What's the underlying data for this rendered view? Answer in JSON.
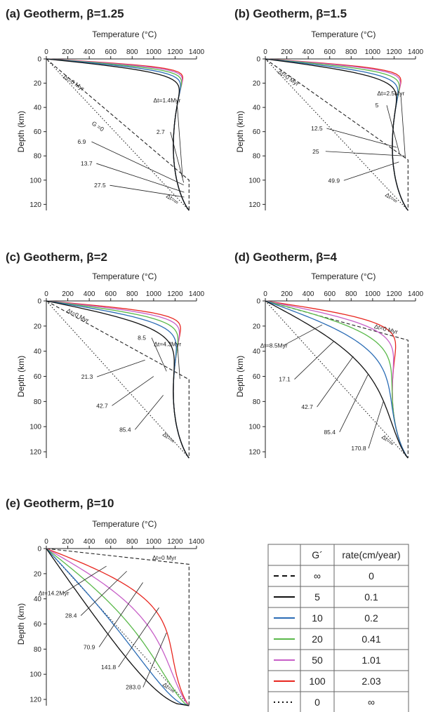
{
  "chart_data": [
    {
      "id": "a",
      "type": "line",
      "title": "(a) Geotherm, β=1.25",
      "xlabel": "Temperature (°C)",
      "ylabel": "Depth (km)",
      "xlim": [
        0,
        1400
      ],
      "ylim": [
        0,
        125
      ],
      "xticks": [
        0,
        200,
        400,
        600,
        800,
        1000,
        1200,
        1400
      ],
      "yticks": [
        0,
        20,
        40,
        60,
        80,
        100,
        120
      ],
      "initial": {
        "T_base": 1330,
        "depth": 100
      },
      "asymptote_depth": 125,
      "curve_scale": 17,
      "series": [
        {
          "G": "100",
          "color": "#e8261f",
          "k": 2.2
        },
        {
          "G": "50",
          "color": "#c75fc7",
          "k": 2.0
        },
        {
          "G": "20",
          "color": "#5ab94a",
          "k": 1.75
        },
        {
          "G": "10",
          "color": "#2b6cb5",
          "k": 1.5
        },
        {
          "G": "5",
          "color": "#111111",
          "k": 1.25
        }
      ],
      "annotations": [
        {
          "text": "Δt=0 Myr",
          "T": 245,
          "z": 21,
          "rot": 34,
          "lx": null,
          "lz": null
        },
        {
          "text": "Δt=1.4Myr",
          "T": 1125,
          "z": 36,
          "lx": 1270,
          "lz": 98
        },
        {
          "text": "2.7",
          "T": 1065,
          "z": 62,
          "lx": 1280,
          "lz": 102
        },
        {
          "text": "G =0",
          "T": 470,
          "z": 57,
          "rot": 34,
          "lx": null,
          "lz": null
        },
        {
          "text": "6.9",
          "T": 330,
          "z": 70,
          "lx": 1280,
          "lz": 104
        },
        {
          "text": "13.7",
          "T": 375,
          "z": 88,
          "lx": 1285,
          "lz": 110
        },
        {
          "text": "27.5",
          "T": 500,
          "z": 106,
          "lx": 1285,
          "lz": 114
        },
        {
          "text": "Δt=∞",
          "T": 1165,
          "z": 117,
          "rot": 34,
          "lx": null,
          "lz": null
        }
      ]
    },
    {
      "id": "b",
      "type": "line",
      "title": "(b) Geotherm, β=1.5",
      "xlabel": "Temperature (°C)",
      "ylabel": "Depth (km)",
      "xlim": [
        0,
        1400
      ],
      "ylim": [
        0,
        125
      ],
      "xticks": [
        0,
        200,
        400,
        600,
        800,
        1000,
        1200,
        1400
      ],
      "yticks": [
        0,
        20,
        40,
        60,
        80,
        100,
        120
      ],
      "initial": {
        "T_base": 1330,
        "depth": 83.3
      },
      "asymptote_depth": 125,
      "curve_scale": 20,
      "series": [
        {
          "G": "100",
          "color": "#e8261f",
          "k": 2.2
        },
        {
          "G": "50",
          "color": "#c75fc7",
          "k": 2.0
        },
        {
          "G": "20",
          "color": "#5ab94a",
          "k": 1.7
        },
        {
          "G": "10",
          "color": "#2b6cb5",
          "k": 1.4
        },
        {
          "G": "5",
          "color": "#111111",
          "k": 1.15
        }
      ],
      "annotations": [
        {
          "text": "Δt=0 Myr",
          "T": 205,
          "z": 17,
          "rot": 34,
          "lx": null,
          "lz": null
        },
        {
          "text": "Δt=2.5Myr",
          "T": 1170,
          "z": 30,
          "lx": 1305,
          "lz": 82
        },
        {
          "text": "5",
          "T": 1040,
          "z": 40,
          "lx": 1250,
          "lz": 78
        },
        {
          "text": "12.5",
          "T": 480,
          "z": 59,
          "lx": 1225,
          "lz": 73
        },
        {
          "text": "25",
          "T": 470,
          "z": 78,
          "lx": 1300,
          "lz": 80
        },
        {
          "text": "49.9",
          "T": 640,
          "z": 102,
          "lx": 1245,
          "lz": 85
        },
        {
          "text": "Δt=∞",
          "T": 1165,
          "z": 116,
          "rot": 34,
          "lx": null,
          "lz": null
        }
      ]
    },
    {
      "id": "c",
      "type": "line",
      "title": "(c) Geotherm, β=2",
      "xlabel": "Temperature (°C)",
      "ylabel": "Depth (km)",
      "xlim": [
        0,
        1400
      ],
      "ylim": [
        0,
        125
      ],
      "xticks": [
        0,
        200,
        400,
        600,
        800,
        1000,
        1200,
        1400
      ],
      "yticks": [
        0,
        20,
        40,
        60,
        80,
        100,
        120
      ],
      "initial": {
        "T_base": 1330,
        "depth": 62.5
      },
      "asymptote_depth": 125,
      "curve_scale": 26,
      "series": [
        {
          "G": "100",
          "color": "#e8261f",
          "k": 2.3
        },
        {
          "G": "50",
          "color": "#c75fc7",
          "k": 1.95
        },
        {
          "G": "20",
          "color": "#5ab94a",
          "k": 1.6
        },
        {
          "G": "10",
          "color": "#2b6cb5",
          "k": 1.3
        },
        {
          "G": "5",
          "color": "#111111",
          "k": 1.0
        }
      ],
      "annotations": [
        {
          "text": "Δt=0 Myr",
          "T": 285,
          "z": 13,
          "rot": 27,
          "lx": null,
          "lz": null
        },
        {
          "text": "Δt=4.3Myr",
          "T": 1130,
          "z": 36,
          "lx": 1245,
          "lz": 62
        },
        {
          "text": "8.5",
          "T": 890,
          "z": 31,
          "lx": 1120,
          "lz": 56
        },
        {
          "text": "21.3",
          "T": 380,
          "z": 62,
          "lx": 920,
          "lz": 47
        },
        {
          "text": "42.7",
          "T": 520,
          "z": 85,
          "lx": 1000,
          "lz": 60
        },
        {
          "text": "85.4",
          "T": 735,
          "z": 104,
          "lx": 1090,
          "lz": 75
        },
        {
          "text": "Δt=∞",
          "T": 1130,
          "z": 110,
          "rot": 37,
          "lx": null,
          "lz": null
        }
      ]
    },
    {
      "id": "d",
      "type": "line",
      "title": "(d) Geotherm, β=4",
      "xlabel": "Temperature (°C)",
      "ylabel": "Depth (km)",
      "xlim": [
        0,
        1400
      ],
      "ylim": [
        0,
        125
      ],
      "xticks": [
        0,
        200,
        400,
        600,
        800,
        1000,
        1200,
        1400
      ],
      "yticks": [
        0,
        20,
        40,
        60,
        80,
        100,
        120
      ],
      "initial": {
        "T_base": 1330,
        "depth": 31.25
      },
      "asymptote_depth": 125,
      "curve_scale": 50,
      "series": [
        {
          "G": "100",
          "color": "#e8261f",
          "k": 2.6
        },
        {
          "G": "50",
          "color": "#c75fc7",
          "k": 2.0
        },
        {
          "G": "20",
          "color": "#5ab94a",
          "k": 1.5
        },
        {
          "G": "10",
          "color": "#2b6cb5",
          "k": 1.1
        },
        {
          "G": "5",
          "color": "#111111",
          "k": 0.75
        }
      ],
      "annotations": [
        {
          "text": "Δt=0 Myr",
          "T": 1120,
          "z": 24,
          "rot": 14,
          "lx": null,
          "lz": null
        },
        {
          "text": "Δt=8.5Myr",
          "T": 80,
          "z": 37,
          "lx": 530,
          "lz": 19
        },
        {
          "text": "17.1",
          "T": 180,
          "z": 64,
          "lx": 640,
          "lz": 32
        },
        {
          "text": "42.7",
          "T": 390,
          "z": 86,
          "lx": 820,
          "lz": 44
        },
        {
          "text": "85.4",
          "T": 600,
          "z": 106,
          "lx": 960,
          "lz": 58
        },
        {
          "text": "170.8",
          "T": 870,
          "z": 119,
          "lx": 1100,
          "lz": 80
        },
        {
          "text": "Δt=∞",
          "T": 1130,
          "z": 112,
          "rot": 37,
          "lx": null,
          "lz": null
        }
      ]
    },
    {
      "id": "e",
      "type": "line",
      "title": "(e) Geotherm, β=10",
      "xlabel": "Temperature (°C)",
      "ylabel": "Depth (km)",
      "xlim": [
        0,
        1400
      ],
      "ylim": [
        0,
        125
      ],
      "xticks": [
        0,
        200,
        400,
        600,
        800,
        1000,
        1200,
        1400
      ],
      "yticks": [
        0,
        20,
        40,
        60,
        80,
        100,
        120
      ],
      "initial": {
        "T_base": 1330,
        "depth": 12.5
      },
      "asymptote_depth": 125,
      "curve_scale": 130,
      "series": [
        {
          "G": "100",
          "color": "#e8261f",
          "k": 2.6
        },
        {
          "G": "50",
          "color": "#c75fc7",
          "k": 1.8
        },
        {
          "G": "20",
          "color": "#5ab94a",
          "k": 1.3
        },
        {
          "G": "10",
          "color": "#2b6cb5",
          "k": 0.95
        },
        {
          "G": "5",
          "color": "#111111",
          "k": 0.7
        }
      ],
      "annotations": [
        {
          "text": "Δt=0 Myr",
          "T": 1100,
          "z": 9,
          "rot": 0,
          "lx": null,
          "lz": null
        },
        {
          "text": "Δt=14.2Myr",
          "T": 70,
          "z": 37,
          "lx": 560,
          "lz": 14
        },
        {
          "text": "28.4",
          "T": 230,
          "z": 55,
          "lx": 750,
          "lz": 18
        },
        {
          "text": "70.9",
          "T": 400,
          "z": 80,
          "lx": 900,
          "lz": 27
        },
        {
          "text": "141.8",
          "T": 580,
          "z": 96,
          "lx": 1050,
          "lz": 47
        },
        {
          "text": "283.0",
          "T": 810,
          "z": 112,
          "lx": 1120,
          "lz": 67
        },
        {
          "text": "Δt=∞",
          "T": 1130,
          "z": 112,
          "rot": 37,
          "lx": null,
          "lz": null
        }
      ]
    }
  ],
  "legend": {
    "headers": [
      "",
      "G´",
      "rate(cm/year)"
    ],
    "rows": [
      {
        "style": "dashed",
        "color": "#111111",
        "G": "∞",
        "rate": "0"
      },
      {
        "style": "solid",
        "color": "#111111",
        "G": "5",
        "rate": "0.1"
      },
      {
        "style": "solid",
        "color": "#2b6cb5",
        "G": "10",
        "rate": "0.2"
      },
      {
        "style": "solid",
        "color": "#5ab94a",
        "G": "20",
        "rate": "0.41"
      },
      {
        "style": "solid",
        "color": "#c75fc7",
        "G": "50",
        "rate": "1.01"
      },
      {
        "style": "solid",
        "color": "#e8261f",
        "G": "100",
        "rate": "2.03"
      },
      {
        "style": "dotted",
        "color": "#111111",
        "G": "0",
        "rate": "∞"
      }
    ]
  }
}
